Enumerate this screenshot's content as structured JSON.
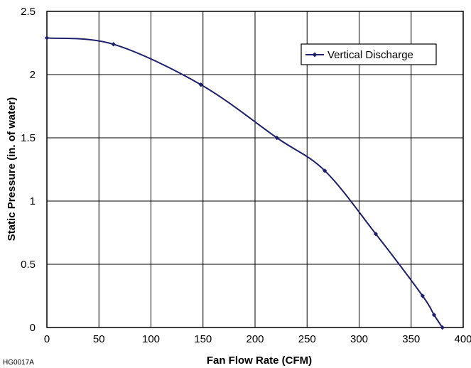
{
  "figure_code": "HG0017A",
  "colors": {
    "series": "#1f1f6e",
    "grid": "#000000",
    "background": "#ffffff"
  },
  "chart_data": {
    "type": "line",
    "title": "",
    "xlabel": "Fan Flow Rate (CFM)",
    "ylabel": "Static Pressure (in. of water)",
    "xlim": [
      0,
      400
    ],
    "ylim": [
      0,
      2.5
    ],
    "xticks": [
      0,
      50,
      100,
      150,
      200,
      250,
      300,
      350,
      400
    ],
    "yticks": [
      0,
      0.5,
      1,
      1.5,
      2,
      2.5
    ],
    "xtick_labels": [
      "0",
      "50",
      "100",
      "150",
      "200",
      "250",
      "300",
      "350",
      "400"
    ],
    "ytick_labels": [
      "0",
      "0.5",
      "1",
      "1.5",
      "2",
      "2.5"
    ],
    "grid": true,
    "legend_position": "top-right",
    "series": [
      {
        "name": "Vertical Discharge",
        "marker": "diamond",
        "x": [
          0,
          64,
          148,
          221,
          267,
          316,
          361,
          372,
          380
        ],
        "y": [
          2.29,
          2.24,
          1.92,
          1.5,
          1.24,
          0.74,
          0.25,
          0.1,
          0
        ]
      }
    ]
  }
}
